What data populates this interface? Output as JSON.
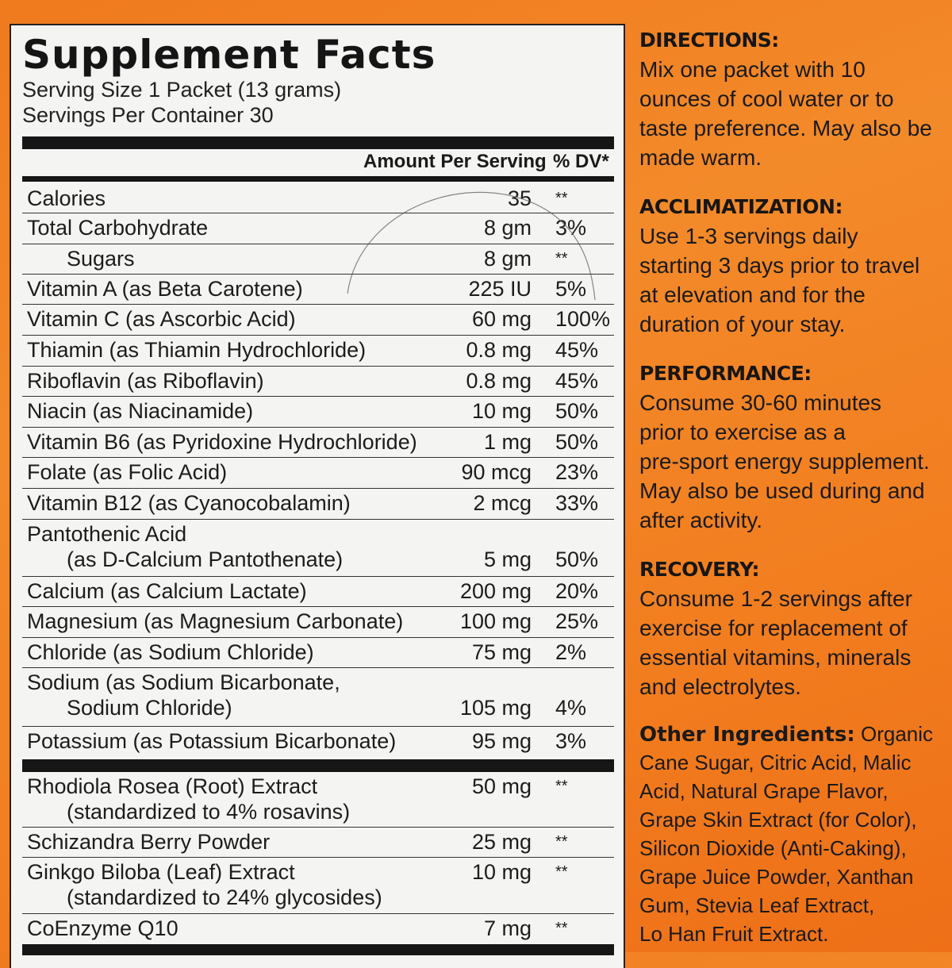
{
  "panel": {
    "title": "Supplement Facts",
    "serving_size": "Serving Size 1 Packet (13 grams)",
    "servings_per_container": "Servings Per Container 30",
    "header_amount": "Amount Per Serving",
    "header_dv": "% DV*"
  },
  "rows": [
    {
      "name": "Calories",
      "amount": "35",
      "dv": "**"
    },
    {
      "name": "Total Carbohydrate",
      "amount": "8 gm",
      "dv": "3%"
    },
    {
      "name": "Sugars",
      "amount": "8 gm",
      "dv": "**"
    },
    {
      "name": "Vitamin A (as Beta Carotene)",
      "amount": "225 IU",
      "dv": "5%"
    },
    {
      "name": "Vitamin C (as Ascorbic Acid)",
      "amount": "60 mg",
      "dv": "100%"
    },
    {
      "name": "Thiamin (as Thiamin Hydrochloride)",
      "amount": "0.8 mg",
      "dv": "45%"
    },
    {
      "name": "Riboflavin (as Riboflavin)",
      "amount": "0.8 mg",
      "dv": "45%"
    },
    {
      "name": "Niacin (as Niacinamide)",
      "amount": "10 mg",
      "dv": "50%"
    },
    {
      "name": "Vitamin B6 (as Pyridoxine Hydrochloride)",
      "amount": "1 mg",
      "dv": "50%"
    },
    {
      "name": "Folate (as Folic Acid)",
      "amount": "90 mcg",
      "dv": "23%"
    },
    {
      "name": "Vitamin B12 (as Cyanocobalamin)",
      "amount": "2 mcg",
      "dv": "33%"
    },
    {
      "name": "Pantothenic Acid",
      "name2": "(as D-Calcium Pantothenate)",
      "amount": "5 mg",
      "dv": "50%"
    },
    {
      "name": "Calcium (as Calcium Lactate)",
      "amount": "200 mg",
      "dv": "20%"
    },
    {
      "name": "Magnesium (as Magnesium Carbonate)",
      "amount": "100 mg",
      "dv": "25%"
    },
    {
      "name": "Chloride (as Sodium Chloride)",
      "amount": "75 mg",
      "dv": "2%"
    },
    {
      "name": "Sodium (as Sodium Bicarbonate,",
      "name2": "Sodium Chloride)",
      "amount": "105 mg",
      "dv": "4%"
    },
    {
      "name": "Potassium (as Potassium Bicarbonate)",
      "amount": "95 mg",
      "dv": "3%"
    },
    {
      "name": "Rhodiola Rosea (Root) Extract",
      "name2": "(standardized to 4% rosavins)",
      "amount": "50 mg",
      "dv": "**"
    },
    {
      "name": "Schizandra Berry Powder",
      "amount": "25 mg",
      "dv": "**"
    },
    {
      "name": "Ginkgo Biloba (Leaf) Extract",
      "name2": "(standardized to 24% glycosides)",
      "amount": "10 mg",
      "dv": "**"
    },
    {
      "name": "CoEnzyme Q10",
      "amount": "7 mg",
      "dv": "**"
    }
  ],
  "directions": {
    "heading": "DIRECTIONS:",
    "lines": [
      "Mix one packet with 10",
      "ounces of cool water or to",
      "taste preference. May also be",
      "made warm."
    ]
  },
  "acclimatization": {
    "heading": "ACCLIMATIZATION:",
    "lines": [
      "Use 1-3 servings daily",
      "starting 3 days prior to travel",
      "at elevation and for the",
      "duration of your stay."
    ]
  },
  "performance": {
    "heading": "PERFORMANCE:",
    "lines": [
      "Consume 30-60 minutes",
      "prior to exercise as a",
      "pre-sport energy supplement.",
      "May also be used during and",
      "after activity."
    ]
  },
  "recovery": {
    "heading": "RECOVERY:",
    "lines": [
      "Consume 1-2 servings after",
      "exercise for replacement of",
      "essential vitamins, minerals",
      "and electrolytes."
    ]
  },
  "other_ingredients": {
    "heading": "Other Ingredients:",
    "first_line_rest": " Organic",
    "lines": [
      "Cane Sugar, Citric Acid, Malic",
      "Acid, Natural Grape Flavor,",
      "Grape Skin Extract (for Color),",
      "Silicon Dioxide (Anti-Caking),",
      "Grape Juice Powder, Xanthan",
      "Gum, Stevia Leaf Extract,",
      "Lo Han Fruit Extract."
    ]
  }
}
